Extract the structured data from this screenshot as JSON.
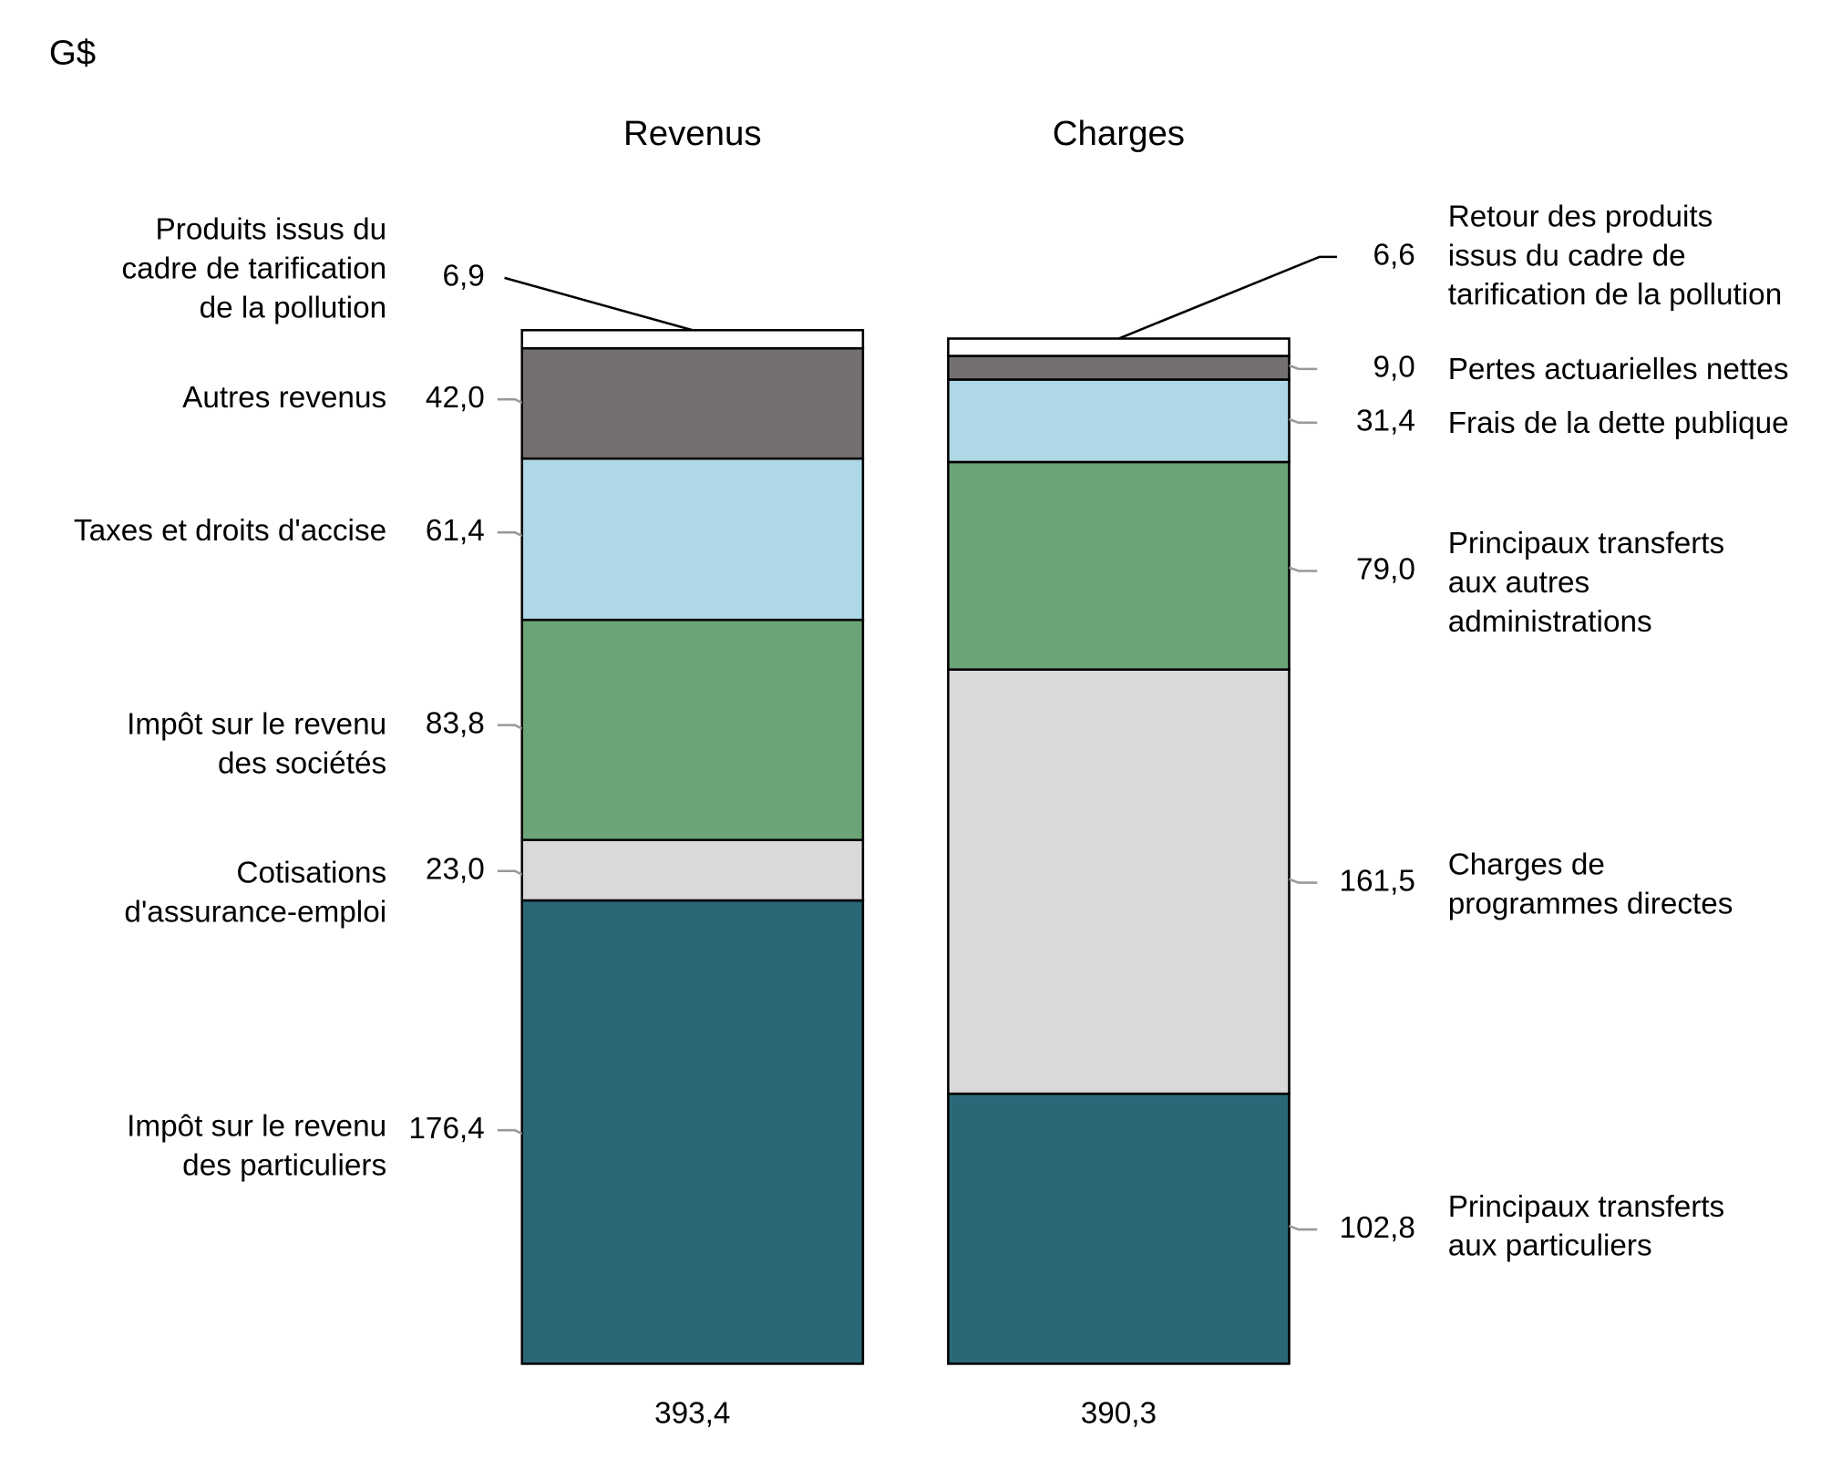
{
  "chart_data": {
    "type": "stacked-columns",
    "unit_label": "G$",
    "columns": [
      {
        "name": "Revenus",
        "total": 393.4,
        "total_label": "393,4",
        "segments": [
          {
            "name": [
              "Impôt sur le revenu",
              "des particuliers"
            ],
            "value": 176.4,
            "value_label": "176,4",
            "color": "#2a6878"
          },
          {
            "name": [
              "Cotisations",
              "d'assurance-emploi"
            ],
            "value": 23.0,
            "value_label": "23,0",
            "color": "#d9d9d9"
          },
          {
            "name": [
              "Impôt sur le revenu",
              "des sociétés"
            ],
            "value": 83.8,
            "value_label": "83,8",
            "color": "#6ba476"
          },
          {
            "name": [
              "Taxes et droits d'accise"
            ],
            "value": 61.4,
            "value_label": "61,4",
            "color": "#aed8e6"
          },
          {
            "name": [
              "Autres revenus"
            ],
            "value": 42.0,
            "value_label": "42,0",
            "color": "#747070"
          },
          {
            "name": [
              "Produits issus du",
              "cadre de tarification",
              "de la pollution"
            ],
            "value": 6.9,
            "value_label": "6,9",
            "color": "#ffffff"
          }
        ]
      },
      {
        "name": "Charges",
        "total": 390.3,
        "total_label": "390,3",
        "segments": [
          {
            "name": [
              "Principaux transferts",
              "aux particuliers"
            ],
            "value": 102.8,
            "value_label": "102,8",
            "color": "#2a6878"
          },
          {
            "name": [
              "Charges de",
              "programmes directes"
            ],
            "value": 161.5,
            "value_label": "161,5",
            "color": "#d9d9d9"
          },
          {
            "name": [
              "Principaux transferts",
              "aux autres",
              "administrations"
            ],
            "value": 79.0,
            "value_label": "79,0",
            "color": "#6ba476"
          },
          {
            "name": [
              "Frais de la dette publique"
            ],
            "value": 31.4,
            "value_label": "31,4",
            "color": "#aed8e6"
          },
          {
            "name": [
              "Pertes actuarielles nettes"
            ],
            "value": 9.0,
            "value_label": "9,0",
            "color": "#747070"
          },
          {
            "name": [
              "Retour des produits",
              "issus du cadre de",
              "tarification de la pollution"
            ],
            "value": 6.6,
            "value_label": "6,6",
            "color": "#ffffff"
          }
        ]
      }
    ]
  }
}
